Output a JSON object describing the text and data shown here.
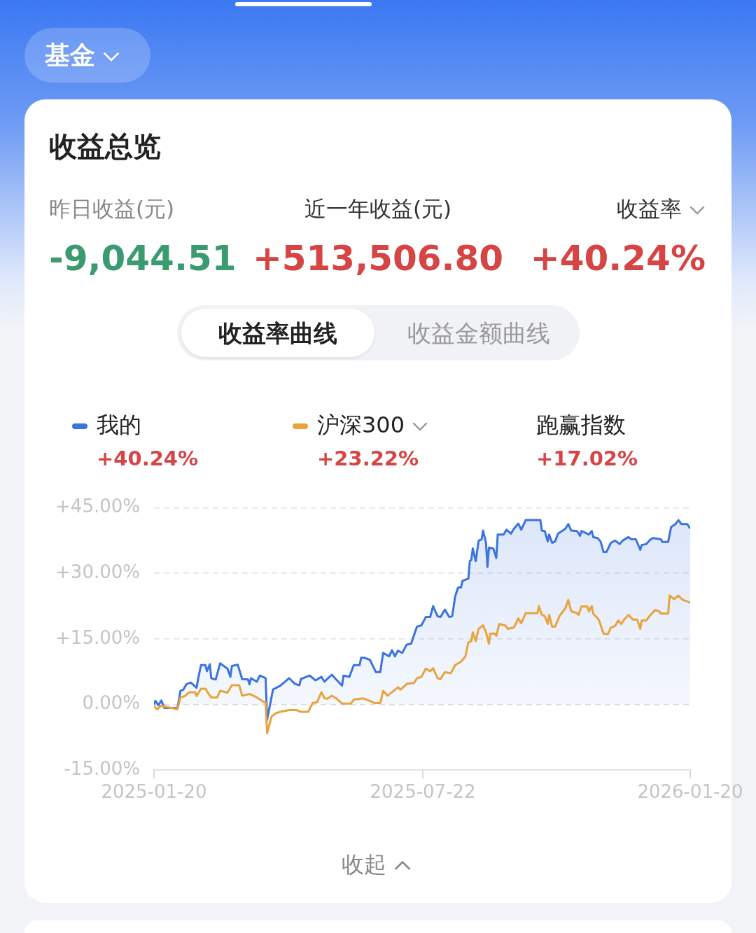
{
  "chart_data": {
    "type": "line",
    "title": "收益总览",
    "annotations": [
      "基金",
      "昨日收益(元)",
      "-9,044.51",
      "近一年收益(元)",
      "+513,506.80",
      "收益率",
      "+40.24%",
      "收益率曲线",
      "收益金额曲线",
      "+40.24%",
      "+23.22%",
      "跑赢指数",
      "+17.02%",
      "收起"
    ],
    "xlim": [
      "2025-01-20",
      "2026-01-20"
    ],
    "xticks": [
      "2025-01-20",
      "2025-07-22",
      "2026-01-20"
    ],
    "ylim": [
      -15,
      45
    ],
    "yticks": [
      {
        "value": -15,
        "label": "-15.00%"
      },
      {
        "value": 0,
        "label": "0.00%"
      },
      {
        "value": 15,
        "label": "+15.00%"
      },
      {
        "value": 30,
        "label": "+30.00%"
      },
      {
        "value": 45,
        "label": "+45.00%"
      }
    ],
    "grid": "y",
    "legend": "top",
    "series": [
      {
        "name": "我的",
        "color": "#3b73e0",
        "type": "area",
        "x": [
          "2025-01-20",
          "2025-01-21",
          "2025-01-23",
          "2025-01-25",
          "2025-01-27",
          "2025-02-05",
          "2025-02-07",
          "2025-02-09",
          "2025-02-11",
          "2025-02-14",
          "2025-02-18",
          "2025-02-19",
          "2025-02-21",
          "2025-02-24",
          "2025-02-25",
          "2025-02-27",
          "2025-02-28",
          "2025-03-03",
          "2025-03-06",
          "2025-03-11",
          "2025-03-13",
          "2025-03-14",
          "2025-03-18",
          "2025-03-21",
          "2025-03-25",
          "2025-03-26",
          "2025-03-27",
          "2025-03-31",
          "2025-04-02",
          "2025-04-06",
          "2025-04-07",
          "2025-04-11",
          "2025-04-16",
          "2025-04-22",
          "2025-04-26",
          "2025-04-29",
          "2025-04-30",
          "2025-05-06",
          "2025-05-10",
          "2025-05-14",
          "2025-05-16",
          "2025-05-21",
          "2025-05-24",
          "2025-05-28",
          "2025-05-29",
          "2025-06-02",
          "2025-06-05",
          "2025-06-09",
          "2025-06-10",
          "2025-06-12",
          "2025-06-16",
          "2025-06-20",
          "2025-06-23",
          "2025-06-25",
          "2025-06-29",
          "2025-07-01",
          "2025-07-03",
          "2025-07-05",
          "2025-07-08",
          "2025-07-11",
          "2025-07-14",
          "2025-07-18",
          "2025-07-21",
          "2025-07-24",
          "2025-07-27",
          "2025-07-29",
          "2025-08-01",
          "2025-08-03",
          "2025-08-06",
          "2025-08-09",
          "2025-08-11",
          "2025-08-13",
          "2025-08-15",
          "2025-08-17",
          "2025-08-18",
          "2025-08-22",
          "2025-08-23",
          "2025-08-24",
          "2025-08-25",
          "2025-08-27",
          "2025-08-29",
          "2025-08-31",
          "2025-09-01",
          "2025-09-03",
          "2025-09-04",
          "2025-09-05",
          "2025-09-08",
          "2025-09-10",
          "2025-09-11",
          "2025-09-15",
          "2025-09-17",
          "2025-09-20",
          "2025-09-22",
          "2025-09-25",
          "2025-09-27",
          "2025-09-30",
          "2025-10-10",
          "2025-10-11",
          "2025-10-13",
          "2025-10-15",
          "2025-10-16",
          "2025-10-18",
          "2025-10-20",
          "2025-10-22",
          "2025-10-27",
          "2025-10-29",
          "2025-10-31",
          "2025-11-04",
          "2025-11-06",
          "2025-11-07",
          "2025-11-12",
          "2025-11-14",
          "2025-11-15",
          "2025-11-18",
          "2025-11-20",
          "2025-11-22",
          "2025-11-24",
          "2025-11-27",
          "2025-11-30",
          "2025-12-03",
          "2025-12-05",
          "2025-12-09",
          "2025-12-11",
          "2025-12-14",
          "2025-12-17",
          "2025-12-18",
          "2025-12-21",
          "2025-12-24",
          "2025-12-26",
          "2025-12-31",
          "2026-01-01",
          "2026-01-05",
          "2026-01-07",
          "2026-01-10",
          "2026-01-12",
          "2026-01-14",
          "2026-01-18",
          "2026-01-20"
        ],
        "values": [
          0.0,
          0.8,
          -0.2,
          0.9,
          -0.8,
          -0.8,
          3.1,
          3.4,
          4.6,
          5.0,
          3.8,
          5.8,
          9.0,
          9.0,
          7.6,
          9.2,
          6.0,
          5.7,
          9.4,
          8.2,
          6.3,
          8.8,
          9.1,
          5.8,
          5.7,
          4.6,
          6.0,
          5.2,
          6.6,
          6.0,
          -3.5,
          3.4,
          4.3,
          6.0,
          4.7,
          4.4,
          5.8,
          6.6,
          5.5,
          6.3,
          5.2,
          6.8,
          5.7,
          4.3,
          6.6,
          6.3,
          9.0,
          9.0,
          10.7,
          10.7,
          10.2,
          7.4,
          7.4,
          11.8,
          11.0,
          12.4,
          11.0,
          12.3,
          11.8,
          13.7,
          13.9,
          17.8,
          18.1,
          20.0,
          20.0,
          22.5,
          20.2,
          20.0,
          21.7,
          20.0,
          20.2,
          24.7,
          26.8,
          26.8,
          28.3,
          28.8,
          32.8,
          33.1,
          35.7,
          32.8,
          37.5,
          37.8,
          39.8,
          37.0,
          31.5,
          35.9,
          35.7,
          33.5,
          38.9,
          38.9,
          40.0,
          39.1,
          40.2,
          41.4,
          40.0,
          42.2,
          42.2,
          39.8,
          39.7,
          37.3,
          38.9,
          37.0,
          37.3,
          39.1,
          40.2,
          41.3,
          39.8,
          39.7,
          38.6,
          39.7,
          38.9,
          39.7,
          38.3,
          38.1,
          37.3,
          34.9,
          34.9,
          37.0,
          37.5,
          36.7,
          37.5,
          38.3,
          37.8,
          37.8,
          35.4,
          36.5,
          36.7,
          37.8,
          38.1,
          37.8,
          37.2,
          37.2,
          40.6,
          41.3,
          42.2,
          41.3,
          41.3,
          40.24
        ]
      },
      {
        "name": "沪深300",
        "color": "#e8a33d",
        "x": [
          "2025-01-20",
          "2025-01-22",
          "2025-01-25",
          "2025-01-27",
          "2025-02-05",
          "2025-02-07",
          "2025-02-10",
          "2025-02-13",
          "2025-02-17",
          "2025-02-18",
          "2025-02-21",
          "2025-02-24",
          "2025-02-26",
          "2025-02-28",
          "2025-03-04",
          "2025-03-06",
          "2025-03-11",
          "2025-03-14",
          "2025-03-19",
          "2025-03-21",
          "2025-03-26",
          "2025-03-31",
          "2025-04-05",
          "2025-04-06",
          "2025-04-07",
          "2025-04-10",
          "2025-04-13",
          "2025-04-16",
          "2025-04-22",
          "2025-04-27",
          "2025-04-30",
          "2025-05-05",
          "2025-05-08",
          "2025-05-11",
          "2025-05-14",
          "2025-05-16",
          "2025-05-18",
          "2025-05-21",
          "2025-05-24",
          "2025-05-28",
          "2025-05-30",
          "2025-06-03",
          "2025-06-05",
          "2025-06-11",
          "2025-06-16",
          "2025-06-19",
          "2025-06-23",
          "2025-06-25",
          "2025-06-28",
          "2025-07-01",
          "2025-07-05",
          "2025-07-07",
          "2025-07-11",
          "2025-07-16",
          "2025-07-18",
          "2025-07-21",
          "2025-07-24",
          "2025-07-27",
          "2025-07-29",
          "2025-08-01",
          "2025-08-03",
          "2025-08-06",
          "2025-08-10",
          "2025-08-13",
          "2025-08-17",
          "2025-08-20",
          "2025-08-22",
          "2025-08-24",
          "2025-08-25",
          "2025-08-27",
          "2025-08-29",
          "2025-09-01",
          "2025-09-03",
          "2025-09-05",
          "2025-09-06",
          "2025-09-09",
          "2025-09-10",
          "2025-09-12",
          "2025-09-16",
          "2025-09-18",
          "2025-09-22",
          "2025-09-25",
          "2025-09-27",
          "2025-09-30",
          "2025-10-08",
          "2025-10-09",
          "2025-10-11",
          "2025-10-13",
          "2025-10-15",
          "2025-10-16",
          "2025-10-18",
          "2025-10-20",
          "2025-10-23",
          "2025-10-27",
          "2025-10-29",
          "2025-10-31",
          "2025-11-04",
          "2025-11-05",
          "2025-11-07",
          "2025-11-11",
          "2025-11-12",
          "2025-11-14",
          "2025-11-15",
          "2025-11-18",
          "2025-11-19",
          "2025-11-22",
          "2025-11-25",
          "2025-11-27",
          "2025-11-30",
          "2025-12-02",
          "2025-12-04",
          "2025-12-06",
          "2025-12-09",
          "2025-12-12",
          "2025-12-15",
          "2025-12-17",
          "2025-12-18",
          "2025-12-21",
          "2025-12-24",
          "2025-12-27",
          "2025-12-30",
          "2025-12-31",
          "2026-01-05",
          "2026-01-06",
          "2026-01-09",
          "2026-01-12",
          "2026-01-15",
          "2026-01-18",
          "2026-01-20"
        ],
        "values": [
          -0.3,
          -1.1,
          -0.3,
          -0.5,
          -1.1,
          1.6,
          1.9,
          2.8,
          2.8,
          1.9,
          3.6,
          3.6,
          2.5,
          1.6,
          1.6,
          3.1,
          2.7,
          4.4,
          4.4,
          2.0,
          2.4,
          1.6,
          0.5,
          0.5,
          -6.6,
          -2.8,
          -2.0,
          -1.7,
          -1.3,
          -1.3,
          -1.7,
          -1.7,
          0.3,
          0.5,
          2.8,
          1.4,
          1.3,
          2.0,
          1.4,
          0.2,
          0.2,
          0.2,
          1.1,
          1.4,
          0.8,
          0.3,
          0.3,
          3.1,
          2.0,
          2.8,
          3.9,
          3.4,
          4.7,
          4.9,
          6.0,
          6.3,
          8.2,
          7.6,
          8.3,
          6.0,
          5.8,
          7.4,
          7.1,
          9.0,
          9.8,
          11.0,
          14.2,
          14.5,
          16.5,
          14.5,
          17.3,
          18.1,
          16.5,
          13.9,
          16.2,
          16.2,
          15.7,
          18.4,
          18.1,
          17.3,
          17.6,
          19.7,
          18.6,
          20.9,
          20.9,
          22.5,
          20.5,
          20.2,
          18.4,
          20.5,
          17.8,
          17.8,
          20.2,
          22.0,
          23.9,
          21.3,
          20.9,
          20.5,
          22.4,
          22.4,
          21.3,
          22.5,
          20.8,
          19.7,
          19.2,
          16.2,
          16.1,
          17.6,
          18.0,
          19.2,
          18.4,
          19.4,
          20.5,
          19.4,
          19.4,
          17.3,
          19.2,
          19.2,
          20.5,
          21.6,
          21.3,
          20.8,
          20.8,
          24.9,
          24.1,
          24.9,
          23.9,
          23.6,
          23.22
        ]
      }
    ]
  }
}
